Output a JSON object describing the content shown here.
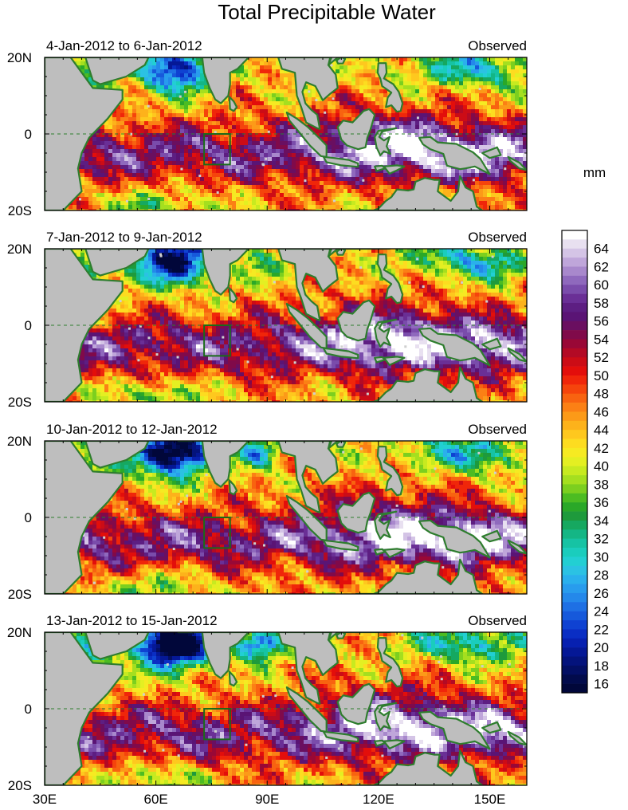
{
  "chart_data": {
    "type": "heatmap",
    "title": "Total Precipitable Water",
    "units": "mm",
    "x_ticks": [
      "30E",
      "60E",
      "90E",
      "120E",
      "150E"
    ],
    "x_tick_values": [
      30,
      60,
      90,
      120,
      150
    ],
    "xlim": [
      30,
      160
    ],
    "y_ticks": [
      "20N",
      "0",
      "20S"
    ],
    "y_tick_values": [
      20,
      0,
      -20
    ],
    "ylim": [
      -20,
      20
    ],
    "colorbar": {
      "labels": [
        "64",
        "62",
        "60",
        "58",
        "56",
        "54",
        "52",
        "50",
        "48",
        "46",
        "44",
        "42",
        "40",
        "38",
        "36",
        "34",
        "32",
        "30",
        "28",
        "26",
        "24",
        "22",
        "20",
        "18",
        "16"
      ],
      "min": 15,
      "max": 66,
      "colors": [
        "#ffffff",
        "#e8e0f0",
        "#d4c4e6",
        "#bfa6da",
        "#a888cc",
        "#8f69bd",
        "#7a4cab",
        "#6a2f96",
        "#5d1e82",
        "#5a1475",
        "#6a0f60",
        "#800a4a",
        "#990836",
        "#b30a25",
        "#cc0c16",
        "#e30e0b",
        "#f0260a",
        "#f5440c",
        "#f86310",
        "#fb8015",
        "#fc9a18",
        "#fdb21b",
        "#fec81e",
        "#fddc20",
        "#f6ea22",
        "#e4ef22",
        "#c7ea20",
        "#a5df1f",
        "#7ccf1f",
        "#4cbc22",
        "#2aa828",
        "#1e9a3c",
        "#16a860",
        "#14b685",
        "#16c3a4",
        "#1acdbd",
        "#22cfd3",
        "#2bc2e3",
        "#2ab0ec",
        "#289ced",
        "#2488ea",
        "#1e70e4",
        "#1659db",
        "#0f42d2",
        "#0a2ec4",
        "#0720b0",
        "#051896",
        "#04137c",
        "#030f64",
        "#020b4c",
        "#01073a"
      ]
    },
    "panels": [
      {
        "period": "4-Jan-2012 to 6-Jan-2012",
        "status": "Observed"
      },
      {
        "period": "7-Jan-2012 to 9-Jan-2012",
        "status": "Observed"
      },
      {
        "period": "10-Jan-2012 to 12-Jan-2012",
        "status": "Observed"
      },
      {
        "period": "13-Jan-2012 to 15-Jan-2012",
        "status": "Observed"
      }
    ]
  },
  "colors": {
    "land": "#bebebe",
    "coast": "#2e7d2e",
    "box": "#1a6b1a",
    "equator": "#2e7d2e"
  }
}
